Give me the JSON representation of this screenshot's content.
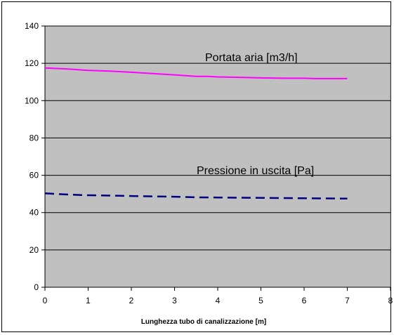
{
  "chart_data": {
    "type": "line",
    "title": "",
    "xlabel": "Lunghezza tubo di canalizzazione [m]",
    "ylabel": "",
    "xlim": [
      0,
      8
    ],
    "ylim": [
      0,
      140
    ],
    "xticks": [
      0,
      1,
      2,
      3,
      4,
      5,
      6,
      7,
      8
    ],
    "yticks": [
      0,
      20,
      40,
      60,
      80,
      100,
      120,
      140
    ],
    "grid": "horizontal",
    "plot_background": "#c0c0c0",
    "legend": "none",
    "series": [
      {
        "name": "Portata aria  [m3/h]",
        "color": "#ff00ff",
        "style": "solid",
        "x": [
          0,
          0.5,
          1,
          1.5,
          2,
          2.5,
          3,
          3.5,
          3.75,
          4,
          4.5,
          5,
          5.5,
          6,
          6.25,
          6.5,
          7
        ],
        "y": [
          117.5,
          117,
          116.2,
          115.8,
          115.2,
          114.5,
          113.8,
          113,
          113,
          112.7,
          112.5,
          112.2,
          112,
          112,
          111.8,
          111.8,
          111.8
        ]
      },
      {
        "name": "Pressione in uscita [Pa]",
        "color": "#000080",
        "style": "dashed",
        "x": [
          0,
          0.5,
          1,
          1.5,
          2,
          2.5,
          3,
          3.5,
          4,
          4.5,
          5,
          5.5,
          6,
          6.5,
          7
        ],
        "y": [
          50.3,
          49.7,
          49.3,
          49.1,
          48.9,
          48.7,
          48.5,
          48.2,
          48.1,
          48,
          47.9,
          47.8,
          47.7,
          47.6,
          47.5
        ]
      }
    ]
  }
}
